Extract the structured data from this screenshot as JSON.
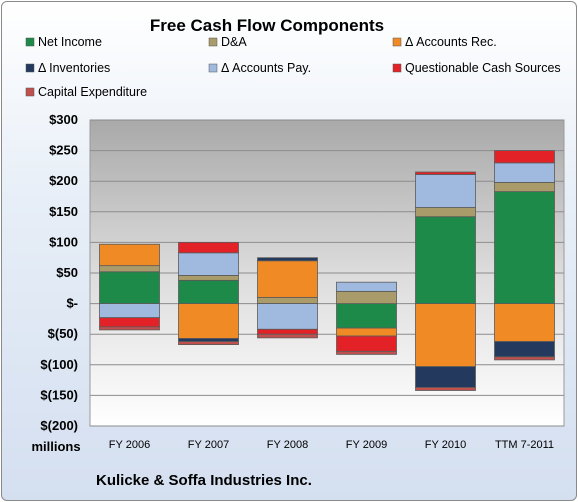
{
  "chart_data": {
    "type": "bar",
    "stacked": true,
    "title": "Free Cash Flow Components",
    "ylabel": "millions",
    "company": "Kulicke & Soffa Industries Inc.",
    "ylim": [
      -200,
      300
    ],
    "yticks": [
      300,
      250,
      200,
      150,
      100,
      50,
      0,
      -50,
      -100,
      -150,
      -200
    ],
    "ytick_labels": [
      "$300",
      "$250",
      "$200",
      "$150",
      "$100",
      "$50",
      "$-",
      "$(50)",
      "$(100)",
      "$(150)",
      "$(200)"
    ],
    "grid": true,
    "legend_position": "top",
    "categories": [
      "FY 2006",
      "FY 2007",
      "FY 2008",
      "FY 2009",
      "FY 2010",
      "TTM 7-2011"
    ],
    "series": [
      {
        "name": "Net Income",
        "color": "#1e8a4a",
        "values": [
          52,
          38,
          0,
          -40,
          142,
          183
        ]
      },
      {
        "name": "D&A",
        "color": "#a99b6a",
        "values": [
          10,
          8,
          10,
          20,
          15,
          15
        ]
      },
      {
        "name": "Δ Accounts Rec.",
        "color": "#f08a24",
        "values": [
          35,
          -57,
          60,
          -13,
          -103,
          -62
        ]
      },
      {
        "name": "Δ Inventories",
        "color": "#233a5e",
        "values": [
          0,
          -5,
          5,
          0,
          -34,
          -25
        ]
      },
      {
        "name": "Δ Accounts Pay.",
        "color": "#9fb9df",
        "values": [
          -23,
          37,
          -42,
          15,
          54,
          32
        ]
      },
      {
        "name": "Questionable Cash Sources",
        "color": "#e32228",
        "values": [
          -15,
          17,
          -8,
          -25,
          4,
          20
        ]
      },
      {
        "name": "Capital Expenditure",
        "color": "#c0504d",
        "values": [
          -5,
          -5,
          -6,
          -5,
          -5,
          -5
        ]
      }
    ]
  }
}
